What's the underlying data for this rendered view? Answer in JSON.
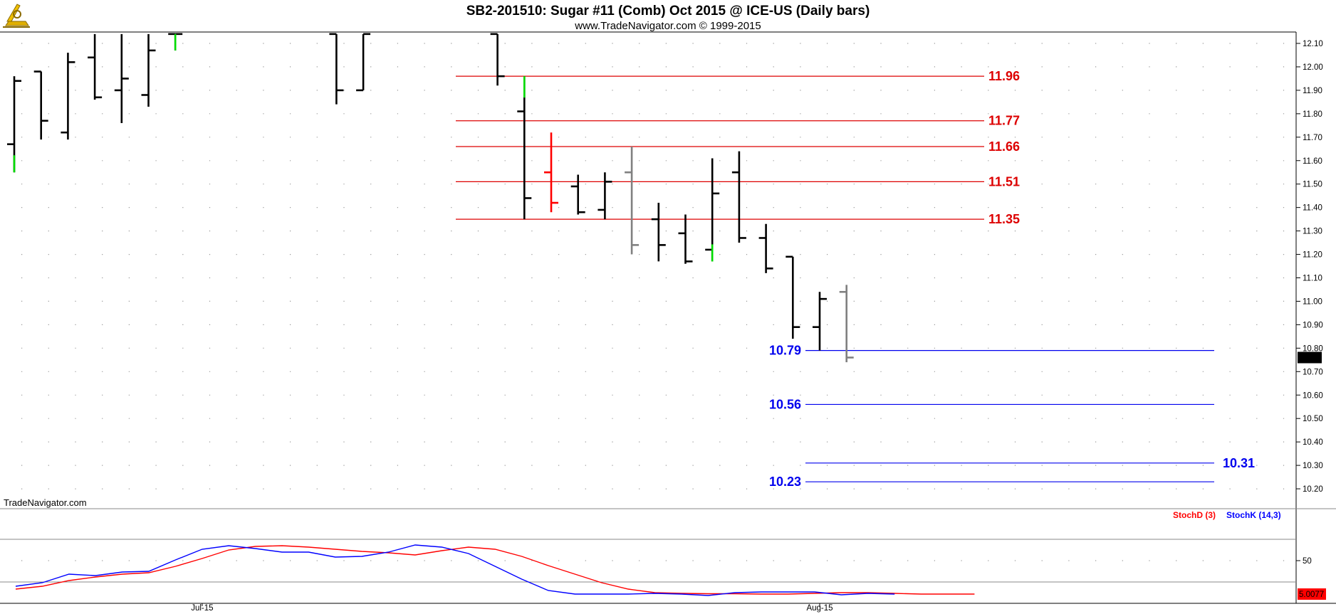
{
  "header": {
    "title": "SB2-201510:  Sugar #11 (Comb) Oct 2015 @ ICE-US  (Daily bars)",
    "subtitle": "www.TradeNavigator.com © 1999-2015"
  },
  "watermark": "TradeNavigator.com",
  "colors": {
    "bar_up": "#000000",
    "bar_gray": "#808080",
    "bar_red": "#ff0000",
    "bar_green": "#00dd00",
    "resistance": "#dd0000",
    "support": "#0000ee",
    "stoch_d": "#ff0000",
    "stoch_k": "#0000ff",
    "price_flag_bg": "#000000",
    "stoch_flag_bg": "#ff0000"
  },
  "chart_data": [
    {
      "type": "ohlc",
      "title": "SB2-201510:  Sugar #11 (Comb) Oct 2015 @ ICE-US  (Daily bars)",
      "ylim": [
        10.14,
        12.14
      ],
      "y_ticks": [
        "12.10",
        "12.00",
        "11.90",
        "11.80",
        "11.70",
        "11.60",
        "11.50",
        "11.40",
        "11.30",
        "11.20",
        "11.10",
        "11.00",
        "10.90",
        "10.80",
        "10.70",
        "10.60",
        "10.50",
        "10.40",
        "10.30",
        "10.20"
      ],
      "x_ticks": [
        {
          "label": "Jul-15",
          "bar": 7
        },
        {
          "label": "Aug-15",
          "bar": 30
        }
      ],
      "last_price": "10.76",
      "bars": [
        {
          "o": 11.67,
          "h": 11.96,
          "l": 11.55,
          "c": 11.94,
          "col": "green_low"
        },
        {
          "o": 11.98,
          "h": 11.98,
          "l": 11.69,
          "c": 11.77
        },
        {
          "o": 11.72,
          "h": 12.06,
          "l": 11.69,
          "c": 12.02
        },
        {
          "o": 12.04,
          "h": 12.14,
          "l": 11.86,
          "c": 11.87
        },
        {
          "o": 11.9,
          "h": 12.14,
          "l": 11.76,
          "c": 11.95
        },
        {
          "o": 11.88,
          "h": 12.14,
          "l": 11.83,
          "c": 12.07
        },
        {
          "o": 12.14,
          "h": 12.14,
          "l": 12.07,
          "c": 12.14,
          "col": "green_low"
        },
        {
          "o": 12.14,
          "h": 12.14,
          "l": 12.14,
          "c": 12.14,
          "col": "hidden"
        },
        {
          "o": 12.14,
          "h": 12.14,
          "l": 12.14,
          "c": 12.14,
          "col": "hidden"
        },
        {
          "o": 12.14,
          "h": 12.14,
          "l": 12.14,
          "c": 12.14,
          "col": "hidden"
        },
        {
          "o": 12.14,
          "h": 12.14,
          "l": 12.14,
          "c": 12.14,
          "col": "hidden"
        },
        {
          "o": 12.14,
          "h": 12.14,
          "l": 12.14,
          "c": 12.14,
          "col": "hidden"
        },
        {
          "o": 12.14,
          "h": 12.14,
          "l": 11.84,
          "c": 11.9
        },
        {
          "o": 11.9,
          "h": 12.14,
          "l": 11.9,
          "c": 12.14
        },
        {
          "o": 12.14,
          "h": 12.14,
          "l": 12.14,
          "c": 12.14,
          "col": "hidden"
        },
        {
          "o": 12.14,
          "h": 12.14,
          "l": 12.14,
          "c": 12.14,
          "col": "hidden"
        },
        {
          "o": 12.14,
          "h": 12.14,
          "l": 12.14,
          "c": 12.14,
          "col": "hidden"
        },
        {
          "o": 12.14,
          "h": 12.14,
          "l": 12.14,
          "c": 12.14,
          "col": "hidden"
        },
        {
          "o": 12.14,
          "h": 12.14,
          "l": 11.92,
          "c": 11.96
        },
        {
          "o": 11.81,
          "h": 11.96,
          "l": 11.35,
          "c": 11.44,
          "col": "green_high"
        },
        {
          "o": 11.55,
          "h": 11.72,
          "l": 11.38,
          "c": 11.42,
          "col": "red"
        },
        {
          "o": 11.49,
          "h": 11.54,
          "l": 11.37,
          "c": 11.38
        },
        {
          "o": 11.39,
          "h": 11.55,
          "l": 11.35,
          "c": 11.51
        },
        {
          "o": 11.55,
          "h": 11.66,
          "l": 11.2,
          "c": 11.24,
          "col": "gray"
        },
        {
          "o": 11.35,
          "h": 11.42,
          "l": 11.17,
          "c": 11.24
        },
        {
          "o": 11.29,
          "h": 11.37,
          "l": 11.16,
          "c": 11.17
        },
        {
          "o": 11.22,
          "h": 11.61,
          "l": 11.17,
          "c": 11.46,
          "col": "green_low"
        },
        {
          "o": 11.55,
          "h": 11.64,
          "l": 11.25,
          "c": 11.27
        },
        {
          "o": 11.27,
          "h": 11.33,
          "l": 11.12,
          "c": 11.14
        },
        {
          "o": 11.19,
          "h": 11.19,
          "l": 10.84,
          "c": 10.89
        },
        {
          "o": 10.89,
          "h": 11.04,
          "l": 10.79,
          "c": 11.01
        },
        {
          "o": 11.04,
          "h": 11.07,
          "l": 10.74,
          "c": 10.76,
          "col": "gray"
        }
      ],
      "resistance_levels": [
        {
          "value": 11.96,
          "label": "11.96"
        },
        {
          "value": 11.77,
          "label": "11.77"
        },
        {
          "value": 11.66,
          "label": "11.66"
        },
        {
          "value": 11.51,
          "label": "11.51"
        },
        {
          "value": 11.35,
          "label": "11.35"
        }
      ],
      "support_levels": [
        {
          "value": 10.79,
          "label": "10.79",
          "label_side": "left"
        },
        {
          "value": 10.56,
          "label": "10.56",
          "label_side": "left"
        },
        {
          "value": 10.31,
          "label": "10.31",
          "label_side": "right"
        },
        {
          "value": 10.23,
          "label": "10.23",
          "label_side": "left"
        }
      ]
    },
    {
      "type": "line",
      "ylim": [
        0,
        100
      ],
      "y_ticks": [
        "50"
      ],
      "reference_lines": [
        80,
        20
      ],
      "last_value": "5.0077",
      "series": [
        {
          "name": "StochD (3)",
          "color": "#ff0000",
          "values": [
            10,
            14,
            22,
            27,
            31,
            33,
            42,
            53,
            65,
            70,
            71,
            69,
            66,
            63,
            61,
            58,
            64,
            69,
            66,
            56,
            43,
            31,
            19,
            10,
            5,
            4,
            3.5,
            3.5,
            3,
            3,
            4,
            5,
            5,
            4,
            3,
            3,
            3
          ]
        },
        {
          "name": "StochK (14,3)",
          "color": "#0000ff",
          "values": [
            14,
            19,
            31,
            29,
            34,
            35,
            51,
            66,
            71,
            67,
            62,
            62,
            55,
            56,
            62,
            72,
            69,
            60,
            42,
            24,
            8,
            3,
            3,
            3,
            4,
            3,
            1,
            5,
            6,
            6,
            6,
            2,
            4,
            3
          ]
        }
      ],
      "x_ticks": [
        "Jul-15",
        "Aug-15"
      ]
    }
  ]
}
